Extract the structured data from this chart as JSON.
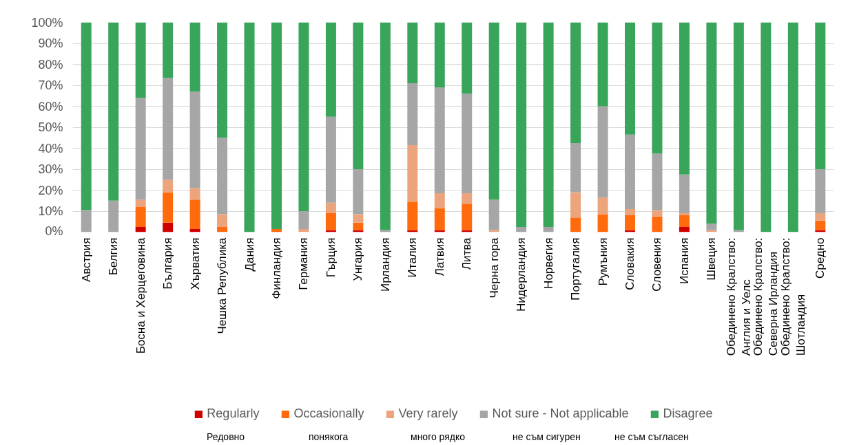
{
  "chart_data": {
    "type": "bar",
    "stacked": true,
    "categories": [
      "Австрия",
      "Белгия",
      "Босна и Херцеговина",
      "България",
      "Хърватия",
      "Чешка Република",
      "Дания",
      "Финландия",
      "Германия",
      "Гърция",
      "Унгария",
      "Ирландия",
      "Италия",
      "Латвия",
      "Литва",
      "Черна гора",
      "Нидерландия",
      "Норвегия",
      "Португалия",
      "Румъния",
      "Словакия",
      "Словения",
      "Испания",
      "Швеция",
      "Обединено Кралство: Англия и Уелс",
      "Обединено Кралство: Северна Ирландия",
      "Обединено Кралство: Шотландия",
      "Средно"
    ],
    "series": [
      {
        "name": "Regularly",
        "color": "#d00000",
        "values": [
          0,
          0,
          2.5,
          4.5,
          1.5,
          0,
          0,
          0,
          0,
          1,
          1,
          0,
          1,
          1,
          1,
          0,
          0,
          0,
          0,
          0,
          1,
          0,
          2.5,
          0,
          0,
          0,
          0,
          1
        ]
      },
      {
        "name": "Occasionally",
        "color": "#ff6a0d",
        "values": [
          0,
          0,
          9.5,
          14.5,
          14,
          2.5,
          0,
          1.5,
          0,
          8,
          3.5,
          0,
          13.5,
          10.5,
          12.5,
          0,
          0,
          0,
          7,
          8.5,
          7,
          7.5,
          5.5,
          0,
          0,
          0,
          0,
          4.5
        ]
      },
      {
        "name": "Very rarely",
        "color": "#eba47c",
        "values": [
          0,
          0,
          3.5,
          6,
          5.5,
          6,
          0,
          0,
          1.5,
          5,
          4,
          0,
          27,
          7,
          5,
          1,
          0,
          0,
          12,
          8,
          3,
          3,
          1,
          1,
          0,
          0,
          0,
          3.5
        ]
      },
      {
        "name": "Not sure - Not applicable",
        "color": "#a6a6a6",
        "values": [
          10.5,
          15,
          48.5,
          48.5,
          46,
          36.5,
          0,
          0,
          8.5,
          41,
          21.5,
          1,
          29.5,
          50.5,
          47.5,
          14.5,
          2.5,
          2.5,
          23.5,
          43.5,
          35.5,
          27,
          18.5,
          3,
          1,
          0,
          0,
          21
        ]
      },
      {
        "name": "Disagree",
        "color": "#38a55b",
        "values": [
          89.5,
          85,
          36,
          26.5,
          33,
          55,
          100,
          98.5,
          90,
          45,
          70,
          99,
          29,
          31,
          34,
          84.5,
          97.5,
          97.5,
          57.5,
          40,
          53.5,
          62.5,
          72.5,
          96,
          99,
          100,
          100,
          70
        ]
      }
    ],
    "ylim": [
      0,
      100
    ],
    "yticks": [
      {
        "value": 0,
        "label": "0%"
      },
      {
        "value": 10,
        "label": "10%"
      },
      {
        "value": 20,
        "label": "20%"
      },
      {
        "value": 30,
        "label": "30%"
      },
      {
        "value": 40,
        "label": "40%"
      },
      {
        "value": 50,
        "label": "50%"
      },
      {
        "value": 60,
        "label": "60%"
      },
      {
        "value": 70,
        "label": "70%"
      },
      {
        "value": 80,
        "label": "80%"
      },
      {
        "value": 90,
        "label": "90%"
      },
      {
        "value": 100,
        "label": "100%"
      }
    ],
    "grid": "y",
    "legend": "bottom",
    "annotations": [
      "Редовно",
      "понякога",
      "много рядко",
      "не съм сигурен",
      "не съм съгласен"
    ]
  }
}
